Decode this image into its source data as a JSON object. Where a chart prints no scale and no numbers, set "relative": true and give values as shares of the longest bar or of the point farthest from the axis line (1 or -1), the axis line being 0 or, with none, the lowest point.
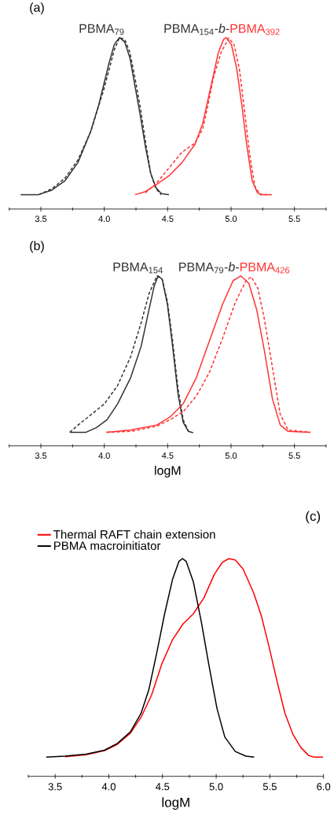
{
  "chart_data": [
    {
      "type": "line",
      "relative": true,
      "xlim": [
        3.25,
        5.75
      ],
      "xticks": [
        {
          "value": 3.25,
          "label": null
        },
        3.5,
        {
          "value": 3.75,
          "label": null
        },
        {
          "value": 4.0,
          "label": "4.0"
        },
        {
          "value": 4.25,
          "label": null
        },
        4.5,
        {
          "value": 4.75,
          "label": null
        },
        {
          "value": 5.0,
          "label": "5.0"
        },
        {
          "value": 5.25,
          "label": null
        },
        5.5,
        {
          "value": 5.75,
          "label": null
        }
      ],
      "annotations": [
        "(a)",
        "PBMA$_{79}$",
        "PBMA$_{154}$-*b*-",
        "PBMA$_{392}$"
      ],
      "series": [
        {
          "color": "#333333",
          "line_style": "solid",
          "x": [
            3.34,
            3.48,
            3.586,
            3.689,
            3.792,
            3.894,
            3.956,
            3.997,
            4.038,
            4.079,
            4.12,
            4.161,
            4.202,
            4.243,
            4.284,
            4.325,
            4.366,
            4.408,
            4.449,
            4.51
          ],
          "values": [
            0.084,
            0.084,
            0.11,
            0.164,
            0.271,
            0.454,
            0.607,
            0.729,
            0.852,
            0.959,
            1,
            0.974,
            0.882,
            0.714,
            0.546,
            0.362,
            0.209,
            0.125,
            0.09,
            0.084
          ]
        },
        {
          "color": "#333333",
          "line_style": "dashed",
          "x": [
            3.484,
            3.586,
            3.689,
            3.792,
            3.894,
            3.997,
            4.079,
            4.12,
            4.161,
            4.202,
            4.243,
            4.284,
            4.325,
            4.366,
            4.408,
            4.449
          ],
          "values": [
            0.084,
            0.118,
            0.179,
            0.286,
            0.454,
            0.699,
            0.928,
            1,
            0.989,
            0.913,
            0.76,
            0.592,
            0.393,
            0.209,
            0.118,
            0.084
          ]
        },
        {
          "color": "#ff3333",
          "line_style": "solid",
          "x": [
            4.243,
            4.325,
            4.408,
            4.51,
            4.613,
            4.716,
            4.777,
            4.818,
            4.859,
            4.9,
            4.941,
            4.962,
            5.003,
            5.044,
            5.085,
            5.126,
            5.167,
            5.208,
            5.249,
            5.321
          ],
          "values": [
            0.084,
            0.102,
            0.141,
            0.194,
            0.271,
            0.378,
            0.5,
            0.638,
            0.775,
            0.913,
            0.989,
            1,
            0.959,
            0.821,
            0.607,
            0.362,
            0.164,
            0.095,
            0.084,
            0.084
          ]
        },
        {
          "color": "#ff3333",
          "line_style": "dashed",
          "x": [
            4.325,
            4.408,
            4.51,
            4.613,
            4.716,
            4.777,
            4.818,
            4.859,
            4.921,
            4.982,
            5.023,
            5.065,
            5.106,
            5.147,
            5.188,
            5.229,
            5.311
          ],
          "values": [
            0.095,
            0.148,
            0.24,
            0.332,
            0.385,
            0.469,
            0.607,
            0.76,
            0.913,
            0.997,
            0.959,
            0.821,
            0.576,
            0.317,
            0.133,
            0.084,
            0.084
          ]
        }
      ]
    },
    {
      "type": "line",
      "relative": true,
      "xlim": [
        3.25,
        5.75
      ],
      "xlabel": "logM",
      "xticks": [
        {
          "value": 3.25,
          "label": null
        },
        3.5,
        {
          "value": 3.75,
          "label": null
        },
        {
          "value": 4.0,
          "label": "4.0"
        },
        {
          "value": 4.25,
          "label": null
        },
        4.5,
        {
          "value": 4.75,
          "label": null
        },
        {
          "value": 5.0,
          "label": "5.0"
        },
        {
          "value": 5.25,
          "label": null
        },
        5.5,
        {
          "value": 5.75,
          "label": null
        }
      ],
      "annotations": [
        "(b)",
        "PBMA$_{154}$",
        "PBMA$_{79}$-*b*-",
        "PBMA$_{426}$"
      ],
      "series": [
        {
          "color": "#333333",
          "line_style": "solid",
          "x": [
            3.728,
            3.856,
            3.939,
            4.022,
            4.105,
            4.208,
            4.291,
            4.353,
            4.394,
            4.425,
            4.457,
            4.498,
            4.539,
            4.581,
            4.622,
            4.664,
            4.701
          ],
          "values": [
            0.08,
            0.08,
            0.108,
            0.154,
            0.247,
            0.401,
            0.586,
            0.802,
            0.941,
            1,
            0.98,
            0.833,
            0.586,
            0.309,
            0.139,
            0.085,
            0.077
          ]
        },
        {
          "color": "#333333",
          "line_style": "dashed",
          "x": [
            3.728,
            3.794,
            3.898,
            4.001,
            4.105,
            4.208,
            4.291,
            4.353,
            4.415,
            4.457,
            4.498,
            4.539,
            4.581,
            4.622,
            4.664
          ],
          "values": [
            0.08,
            0.123,
            0.185,
            0.247,
            0.355,
            0.525,
            0.725,
            0.895,
            1,
            0.98,
            0.849,
            0.617,
            0.34,
            0.154,
            0.085
          ]
        },
        {
          "color": "#ff3333",
          "line_style": "solid",
          "x": [
            4.018,
            4.208,
            4.415,
            4.519,
            4.622,
            4.726,
            4.829,
            4.933,
            5.016,
            5.078,
            5.14,
            5.202,
            5.264,
            5.326,
            5.388,
            5.45,
            5.626
          ],
          "values": [
            0.08,
            0.093,
            0.123,
            0.17,
            0.247,
            0.401,
            0.617,
            0.833,
            0.972,
            1,
            0.957,
            0.802,
            0.556,
            0.278,
            0.123,
            0.085,
            0.08
          ]
        },
        {
          "color": "#ff3333",
          "line_style": "dashed",
          "x": [
            4.018,
            4.208,
            4.415,
            4.519,
            4.622,
            4.726,
            4.829,
            4.933,
            5.036,
            5.119,
            5.16,
            5.212,
            5.264,
            5.326,
            5.388,
            5.45,
            5.626
          ],
          "values": [
            0.08,
            0.085,
            0.116,
            0.154,
            0.201,
            0.293,
            0.432,
            0.633,
            0.849,
            0.972,
            0.995,
            0.926,
            0.741,
            0.463,
            0.185,
            0.093,
            0.08
          ]
        }
      ]
    },
    {
      "type": "line",
      "relative": true,
      "xlim": [
        3.25,
        6.0
      ],
      "xlabel": "logM",
      "legend": "top left",
      "xticks": [
        {
          "value": 3.25,
          "label": null
        },
        3.5,
        {
          "value": 3.75,
          "label": null
        },
        {
          "value": 4.0,
          "label": "4.0"
        },
        {
          "value": 4.25,
          "label": null
        },
        4.5,
        {
          "value": 4.75,
          "label": null
        },
        {
          "value": 5.0,
          "label": "5.0"
        },
        {
          "value": 5.25,
          "label": null
        },
        5.5,
        {
          "value": 5.75,
          "label": null
        },
        {
          "value": 6.0,
          "label": "6.0"
        }
      ],
      "annotations": [
        "(c)"
      ],
      "series": [
        {
          "name": "Thermal RAFT chain extension",
          "color": "#ff0000",
          "line_style": "solid",
          "x": [
            3.593,
            3.788,
            3.959,
            4.08,
            4.202,
            4.3,
            4.398,
            4.495,
            4.593,
            4.69,
            4.788,
            4.885,
            4.983,
            5.056,
            5.117,
            5.178,
            5.251,
            5.349,
            5.422,
            5.495,
            5.568,
            5.641,
            5.715,
            5.788,
            5.861,
            5.91,
            5.995
          ],
          "values": [
            0.09,
            0.099,
            0.118,
            0.147,
            0.199,
            0.271,
            0.373,
            0.518,
            0.627,
            0.699,
            0.747,
            0.819,
            0.928,
            0.982,
            1,
            0.994,
            0.952,
            0.843,
            0.735,
            0.59,
            0.434,
            0.289,
            0.193,
            0.133,
            0.096,
            0.088,
            0.088
          ]
        },
        {
          "name": "PBMA macroinitiator",
          "color": "#000000",
          "line_style": "solid",
          "x": [
            3.417,
            3.593,
            3.788,
            3.959,
            4.08,
            4.202,
            4.3,
            4.373,
            4.446,
            4.52,
            4.593,
            4.654,
            4.685,
            4.72,
            4.788,
            4.861,
            4.934,
            5.007,
            5.08,
            5.178,
            5.276,
            5.354
          ],
          "values": [
            0.088,
            0.093,
            0.102,
            0.12,
            0.151,
            0.205,
            0.289,
            0.398,
            0.566,
            0.747,
            0.904,
            0.988,
            1,
            0.988,
            0.892,
            0.711,
            0.506,
            0.313,
            0.181,
            0.114,
            0.093,
            0.088
          ]
        }
      ]
    }
  ]
}
